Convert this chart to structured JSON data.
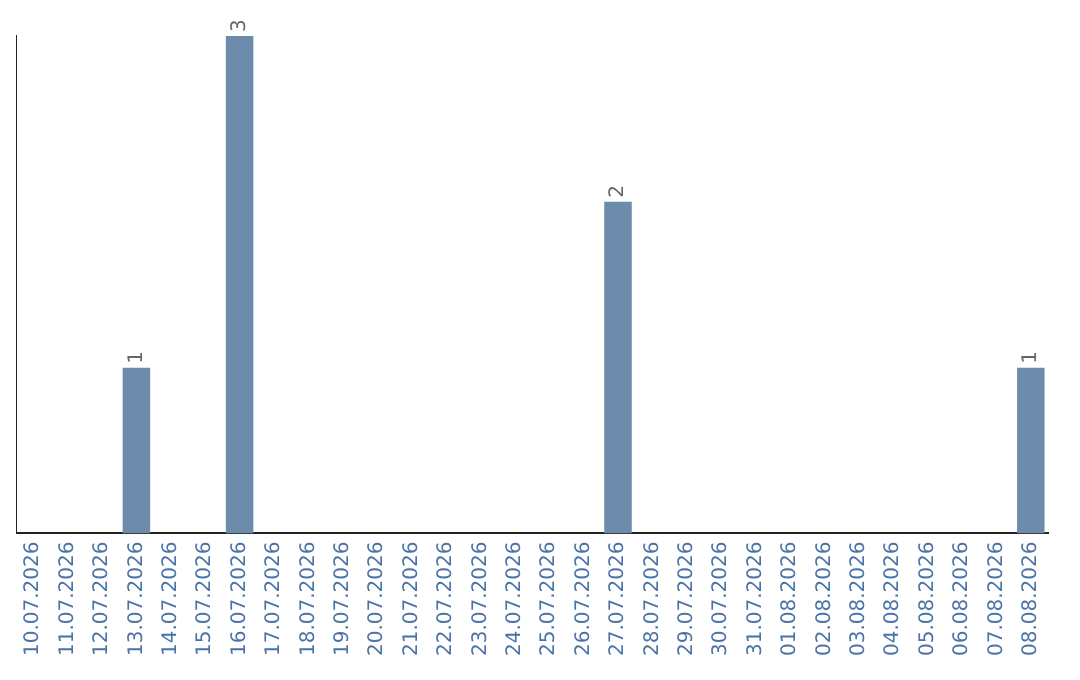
{
  "chart_data": {
    "type": "bar",
    "categories": [
      "10.07.2026",
      "11.07.2026",
      "12.07.2026",
      "13.07.2026",
      "14.07.2026",
      "15.07.2026",
      "16.07.2026",
      "17.07.2026",
      "18.07.2026",
      "19.07.2026",
      "20.07.2026",
      "21.07.2026",
      "22.07.2026",
      "23.07.2026",
      "24.07.2026",
      "25.07.2026",
      "26.07.2026",
      "27.07.2026",
      "28.07.2026",
      "29.07.2026",
      "30.07.2026",
      "31.07.2026",
      "01.08.2026",
      "02.08.2026",
      "03.08.2026",
      "04.08.2026",
      "05.08.2026",
      "06.08.2026",
      "07.08.2026",
      "08.08.2026"
    ],
    "values": [
      0,
      0,
      0,
      1,
      0,
      0,
      3,
      0,
      0,
      0,
      0,
      0,
      0,
      0,
      0,
      0,
      0,
      2,
      0,
      0,
      0,
      0,
      0,
      0,
      0,
      0,
      0,
      0,
      0,
      1
    ],
    "value_labels": [
      null,
      null,
      null,
      "1",
      null,
      null,
      "3",
      null,
      null,
      null,
      null,
      null,
      null,
      null,
      null,
      null,
      null,
      "2",
      null,
      null,
      null,
      null,
      null,
      null,
      null,
      null,
      null,
      null,
      null,
      "1"
    ],
    "color": "#6d8cab",
    "ylim": [
      0,
      3
    ],
    "tick_labels": "x",
    "grid": false,
    "legend": false
  }
}
